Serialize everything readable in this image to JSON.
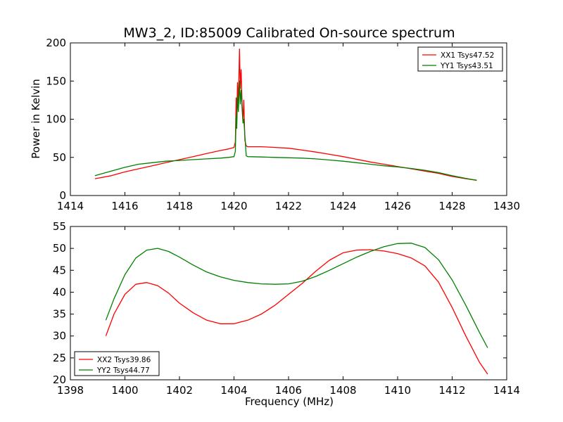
{
  "chart_data": [
    {
      "type": "line",
      "title": "MW3_2, ID:85009 Calibrated On-source spectrum",
      "xlabel": "",
      "ylabel": "Power in Kelvin",
      "xlim": [
        1414,
        1430
      ],
      "ylim": [
        0,
        200
      ],
      "xticks": [
        "1414",
        "1416",
        "1418",
        "1420",
        "1422",
        "1424",
        "1426",
        "1428",
        "1430"
      ],
      "yticks": [
        "0",
        "50",
        "100",
        "150",
        "200"
      ],
      "grid": false,
      "legend_placement": "top-right",
      "series": [
        {
          "name": "XX1 Tsys47.52",
          "color": "#ff0000",
          "x": [
            1414.9,
            1415.5,
            1416.0,
            1416.5,
            1417.0,
            1417.5,
            1418.0,
            1418.5,
            1419.0,
            1419.5,
            1419.8,
            1420.0,
            1420.05,
            1420.08,
            1420.1,
            1420.13,
            1420.16,
            1420.2,
            1420.23,
            1420.26,
            1420.3,
            1420.33,
            1420.36,
            1420.4,
            1420.45,
            1420.5,
            1421.0,
            1421.5,
            1422.0,
            1422.5,
            1423.0,
            1423.5,
            1424.0,
            1424.5,
            1425.0,
            1425.5,
            1426.0,
            1426.5,
            1427.0,
            1427.5,
            1428.0,
            1428.5,
            1428.9
          ],
          "values": [
            22,
            26,
            31,
            35,
            39,
            43,
            47,
            51,
            55,
            59,
            61,
            63,
            70,
            128,
            100,
            148,
            120,
            192,
            140,
            165,
            118,
            100,
            125,
            72,
            65,
            64,
            64,
            63,
            62,
            59.5,
            57,
            54,
            51,
            47.5,
            44,
            41,
            38,
            35,
            32,
            29,
            25,
            22,
            20
          ]
        },
        {
          "name": "YY1 Tsys43.51",
          "color": "#008000",
          "x": [
            1414.9,
            1415.5,
            1416.0,
            1416.5,
            1417.0,
            1417.5,
            1418.0,
            1418.5,
            1419.0,
            1419.5,
            1419.8,
            1420.0,
            1420.05,
            1420.08,
            1420.1,
            1420.13,
            1420.16,
            1420.2,
            1420.23,
            1420.26,
            1420.3,
            1420.33,
            1420.36,
            1420.4,
            1420.45,
            1420.5,
            1421.0,
            1421.5,
            1422.0,
            1422.5,
            1423.0,
            1423.5,
            1424.0,
            1424.5,
            1425.0,
            1425.5,
            1426.0,
            1426.5,
            1427.0,
            1427.5,
            1428.0,
            1428.5,
            1428.9
          ],
          "values": [
            26,
            32,
            37,
            41,
            43,
            45,
            46,
            47,
            48,
            49,
            50,
            51,
            58,
            105,
            88,
            130,
            110,
            150,
            120,
            138,
            112,
            95,
            100,
            78,
            52,
            51,
            50.5,
            50,
            49.5,
            49,
            48,
            46.5,
            45,
            43,
            41,
            39,
            37.5,
            35.5,
            33,
            30,
            26,
            22.5,
            20
          ]
        }
      ]
    },
    {
      "type": "line",
      "title": "",
      "xlabel": "Frequency (MHz)",
      "ylabel": "",
      "xlim": [
        1398,
        1414
      ],
      "ylim": [
        20,
        55
      ],
      "xticks": [
        "1398",
        "1400",
        "1402",
        "1404",
        "1406",
        "1408",
        "1410",
        "1412",
        "1414"
      ],
      "yticks": [
        "20",
        "25",
        "30",
        "35",
        "40",
        "45",
        "50",
        "55"
      ],
      "grid": false,
      "legend_placement": "bottom-left",
      "series": [
        {
          "name": "XX2 Tsys39.86",
          "color": "#ff0000",
          "x": [
            1399.3,
            1399.6,
            1400.0,
            1400.4,
            1400.8,
            1401.2,
            1401.6,
            1402.0,
            1402.5,
            1403.0,
            1403.5,
            1404.0,
            1404.5,
            1405.0,
            1405.5,
            1406.0,
            1406.5,
            1407.0,
            1407.5,
            1408.0,
            1408.5,
            1409.0,
            1409.5,
            1410.0,
            1410.5,
            1411.0,
            1411.5,
            1412.0,
            1412.5,
            1413.0,
            1413.3
          ],
          "values": [
            30,
            35,
            39.5,
            41.8,
            42.2,
            41.5,
            39.8,
            37.5,
            35.3,
            33.6,
            32.8,
            32.8,
            33.6,
            35.0,
            37.0,
            39.5,
            42.0,
            44.8,
            47.3,
            49.0,
            49.6,
            49.7,
            49.4,
            48.8,
            47.8,
            46.0,
            42.3,
            36.5,
            30.0,
            24.0,
            21.3
          ]
        },
        {
          "name": "YY2 Tsys44.77",
          "color": "#008000",
          "x": [
            1399.3,
            1399.6,
            1400.0,
            1400.4,
            1400.8,
            1401.2,
            1401.6,
            1402.0,
            1402.5,
            1403.0,
            1403.5,
            1404.0,
            1404.5,
            1405.0,
            1405.5,
            1406.0,
            1406.5,
            1407.0,
            1407.5,
            1408.0,
            1408.5,
            1409.0,
            1409.5,
            1410.0,
            1410.5,
            1411.0,
            1411.5,
            1412.0,
            1412.5,
            1413.0,
            1413.3
          ],
          "values": [
            33.6,
            38.5,
            44.0,
            47.8,
            49.6,
            50.0,
            49.3,
            48.0,
            46.2,
            44.6,
            43.5,
            42.7,
            42.2,
            41.9,
            41.8,
            41.9,
            42.5,
            43.6,
            45.0,
            46.5,
            48.0,
            49.3,
            50.4,
            51.1,
            51.2,
            50.2,
            47.4,
            42.8,
            37.0,
            30.8,
            27.3
          ]
        }
      ]
    }
  ]
}
